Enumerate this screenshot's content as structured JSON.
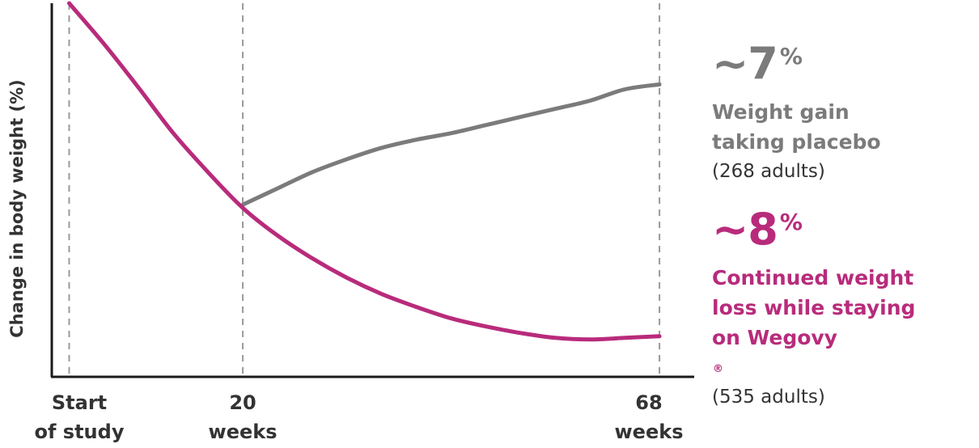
{
  "colors": {
    "placebo": "#7b7b7b",
    "wegovy": "#b82b7b",
    "axis": "#1a1a1a",
    "guide": "#9a9a9a",
    "text": "#333333"
  },
  "chart_data": {
    "type": "line",
    "ylabel": "Change in body weight (%)",
    "x_tick_labels": [
      {
        "id": "start",
        "lines": [
          "Start",
          "of study"
        ]
      },
      {
        "id": "w20",
        "lines": [
          "20",
          "weeks"
        ]
      },
      {
        "id": "w68",
        "lines": [
          "68",
          "weeks"
        ]
      }
    ],
    "x_ticks": [
      0,
      20,
      68
    ],
    "xlim": [
      -2,
      72
    ],
    "ylim": [
      -23,
      0
    ],
    "grid": false,
    "guides": [
      0,
      20,
      68
    ],
    "series": [
      {
        "id": "wegovy",
        "color": "#b82b7b",
        "points": [
          [
            0,
            0
          ],
          [
            4,
            -2.5
          ],
          [
            8,
            -5.2
          ],
          [
            12,
            -8.0
          ],
          [
            16,
            -10.4
          ],
          [
            20,
            -12.6
          ],
          [
            24,
            -14.3
          ],
          [
            28,
            -15.7
          ],
          [
            32,
            -16.9
          ],
          [
            36,
            -17.9
          ],
          [
            40,
            -18.7
          ],
          [
            44,
            -19.4
          ],
          [
            48,
            -19.9
          ],
          [
            52,
            -20.3
          ],
          [
            56,
            -20.6
          ],
          [
            60,
            -20.7
          ],
          [
            64,
            -20.6
          ],
          [
            68,
            -20.5
          ]
        ]
      },
      {
        "id": "placebo",
        "color": "#7b7b7b",
        "points": [
          [
            20,
            -12.4
          ],
          [
            24,
            -11.4
          ],
          [
            28,
            -10.4
          ],
          [
            32,
            -9.6
          ],
          [
            36,
            -8.9
          ],
          [
            40,
            -8.4
          ],
          [
            44,
            -8.0
          ],
          [
            48,
            -7.5
          ],
          [
            52,
            -7.0
          ],
          [
            56,
            -6.5
          ],
          [
            60,
            -6.0
          ],
          [
            64,
            -5.3
          ],
          [
            68,
            -5.0
          ]
        ]
      }
    ]
  },
  "panel": {
    "placebo": {
      "value": "~7",
      "unit": "%",
      "desc_lines": [
        "Weight gain",
        "taking placebo"
      ],
      "count": "(268 adults)"
    },
    "wegovy": {
      "value": "~8",
      "unit": "%",
      "desc_line1": "Continued weight",
      "desc_line2": "loss while staying",
      "desc_line3": "on Wegovy",
      "desc_mark": "®",
      "count": "(535 adults)"
    }
  }
}
